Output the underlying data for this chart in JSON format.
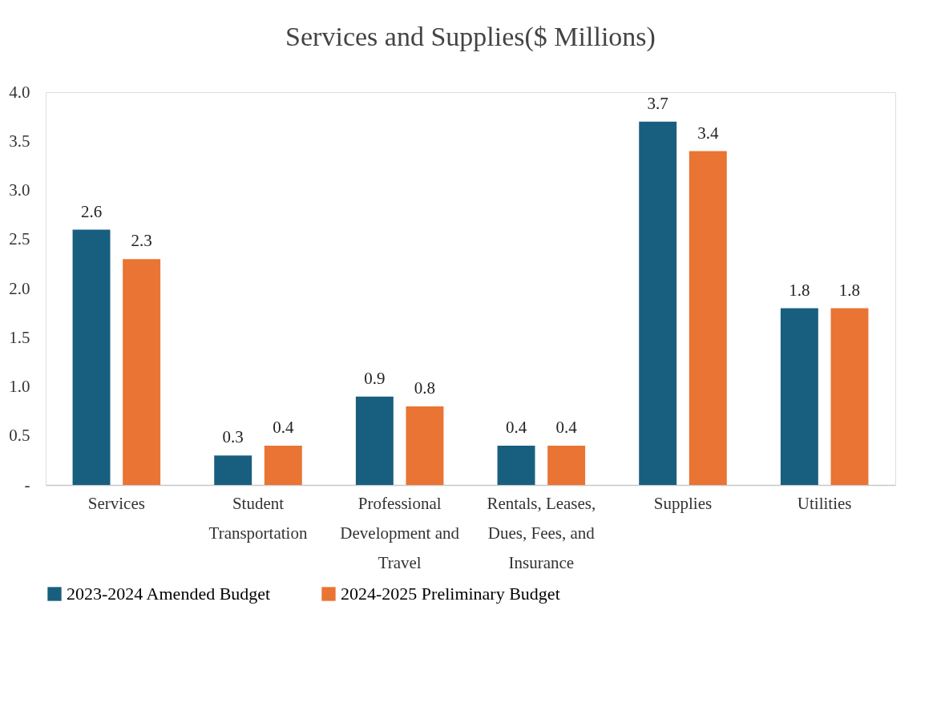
{
  "chart_data": {
    "type": "bar",
    "title": "Services and Supplies($ Millions)",
    "categories": [
      "Services",
      "Student Transportation",
      "Professional Development and Travel",
      "Rentals, Leases, Dues, Fees, and Insurance",
      "Supplies",
      "Utilities"
    ],
    "series": [
      {
        "name": "2023-2024 Amended Budget",
        "color": "#185f7f",
        "values": [
          2.6,
          0.3,
          0.9,
          0.4,
          3.7,
          1.8
        ]
      },
      {
        "name": "2024-2025 Preliminary Budget",
        "color": "#e97433",
        "values": [
          2.3,
          0.4,
          0.8,
          0.4,
          3.4,
          1.8
        ]
      }
    ],
    "ylim": [
      0,
      4
    ],
    "yticks": [
      {
        "value": 0,
        "label": "-"
      },
      0.5,
      {
        "value": 1,
        "label": "1.0"
      },
      1.5,
      {
        "value": 2,
        "label": "2.0"
      },
      2.5,
      {
        "value": 3,
        "label": "3.0"
      },
      3.5,
      {
        "value": 4,
        "label": "4.0"
      }
    ],
    "data_labels": true,
    "grid": false,
    "legend": "bottom"
  }
}
